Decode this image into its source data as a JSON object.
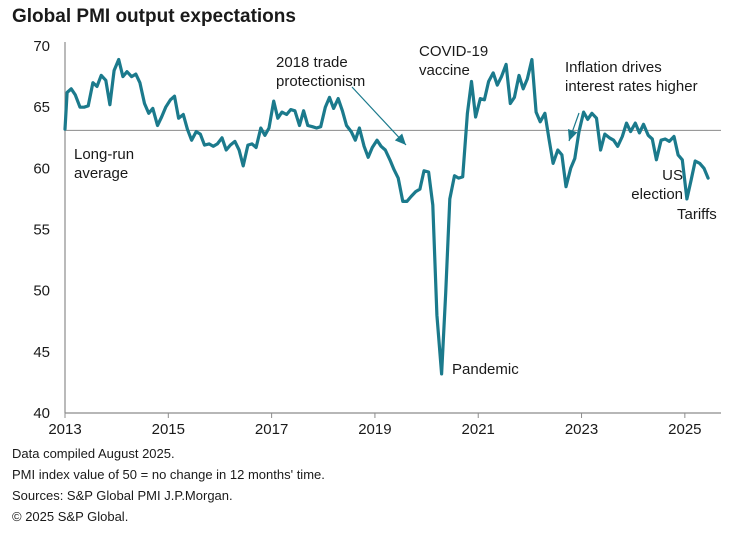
{
  "chart_data": {
    "type": "line",
    "title": "Global PMI output expectations",
    "xlabel": "",
    "ylabel": "",
    "xlim": [
      2013.0,
      2025.7
    ],
    "ylim": [
      40,
      70
    ],
    "x_ticks": [
      "2013",
      "2015",
      "2017",
      "2019",
      "2021",
      "2023",
      "2025"
    ],
    "y_ticks": [
      "40",
      "45",
      "50",
      "55",
      "60",
      "65",
      "70"
    ],
    "reference_line": {
      "label": "Long-run average",
      "value": 63.1
    },
    "line_color": "#1b7a8c",
    "series": [
      {
        "name": "",
        "points": [
          [
            2013.0,
            63.2
          ],
          [
            2013.04,
            66.2
          ],
          [
            2013.12,
            66.5
          ],
          [
            2013.2,
            66.0
          ],
          [
            2013.29,
            65.0
          ],
          [
            2013.37,
            65.0
          ],
          [
            2013.45,
            65.1
          ],
          [
            2013.54,
            67.0
          ],
          [
            2013.62,
            66.7
          ],
          [
            2013.7,
            67.6
          ],
          [
            2013.79,
            67.2
          ],
          [
            2013.87,
            65.2
          ],
          [
            2013.95,
            68.0
          ],
          [
            2014.04,
            68.9
          ],
          [
            2014.12,
            67.5
          ],
          [
            2014.2,
            67.9
          ],
          [
            2014.29,
            67.5
          ],
          [
            2014.37,
            67.7
          ],
          [
            2014.45,
            67.0
          ],
          [
            2014.54,
            65.3
          ],
          [
            2014.62,
            64.5
          ],
          [
            2014.7,
            64.9
          ],
          [
            2014.79,
            63.5
          ],
          [
            2014.87,
            64.2
          ],
          [
            2014.95,
            65.0
          ],
          [
            2015.04,
            65.6
          ],
          [
            2015.12,
            65.9
          ],
          [
            2015.2,
            64.1
          ],
          [
            2015.29,
            64.4
          ],
          [
            2015.37,
            63.2
          ],
          [
            2015.45,
            62.3
          ],
          [
            2015.54,
            63.0
          ],
          [
            2015.62,
            62.8
          ],
          [
            2015.7,
            61.9
          ],
          [
            2015.79,
            62.0
          ],
          [
            2015.87,
            61.8
          ],
          [
            2015.95,
            62.0
          ],
          [
            2016.04,
            62.5
          ],
          [
            2016.12,
            61.5
          ],
          [
            2016.2,
            61.9
          ],
          [
            2016.29,
            62.2
          ],
          [
            2016.37,
            61.5
          ],
          [
            2016.45,
            60.2
          ],
          [
            2016.54,
            61.9
          ],
          [
            2016.62,
            62.0
          ],
          [
            2016.7,
            61.7
          ],
          [
            2016.79,
            63.3
          ],
          [
            2016.87,
            62.7
          ],
          [
            2016.95,
            63.3
          ],
          [
            2017.04,
            65.5
          ],
          [
            2017.12,
            64.1
          ],
          [
            2017.2,
            64.6
          ],
          [
            2017.29,
            64.4
          ],
          [
            2017.37,
            64.8
          ],
          [
            2017.45,
            64.7
          ],
          [
            2017.54,
            63.5
          ],
          [
            2017.62,
            64.7
          ],
          [
            2017.7,
            63.5
          ],
          [
            2017.79,
            63.4
          ],
          [
            2017.87,
            63.3
          ],
          [
            2017.95,
            63.4
          ],
          [
            2018.04,
            65.0
          ],
          [
            2018.12,
            65.8
          ],
          [
            2018.2,
            64.9
          ],
          [
            2018.29,
            65.7
          ],
          [
            2018.37,
            64.7
          ],
          [
            2018.45,
            63.5
          ],
          [
            2018.54,
            63.0
          ],
          [
            2018.62,
            62.3
          ],
          [
            2018.7,
            63.3
          ],
          [
            2018.79,
            61.8
          ],
          [
            2018.87,
            60.9
          ],
          [
            2018.95,
            61.7
          ],
          [
            2019.04,
            62.3
          ],
          [
            2019.12,
            61.8
          ],
          [
            2019.2,
            61.5
          ],
          [
            2019.29,
            60.7
          ],
          [
            2019.37,
            59.9
          ],
          [
            2019.45,
            59.2
          ],
          [
            2019.54,
            57.3
          ],
          [
            2019.62,
            57.3
          ],
          [
            2019.7,
            57.7
          ],
          [
            2019.79,
            58.1
          ],
          [
            2019.87,
            58.3
          ],
          [
            2019.95,
            59.8
          ],
          [
            2020.04,
            59.7
          ],
          [
            2020.12,
            57.0
          ],
          [
            2020.2,
            48.0
          ],
          [
            2020.29,
            43.2
          ],
          [
            2020.37,
            49.8
          ],
          [
            2020.45,
            57.5
          ],
          [
            2020.54,
            59.4
          ],
          [
            2020.62,
            59.2
          ],
          [
            2020.7,
            59.3
          ],
          [
            2020.79,
            64.5
          ],
          [
            2020.87,
            67.1
          ],
          [
            2020.95,
            64.2
          ],
          [
            2021.04,
            65.7
          ],
          [
            2021.12,
            65.6
          ],
          [
            2021.2,
            67.1
          ],
          [
            2021.29,
            67.8
          ],
          [
            2021.37,
            66.8
          ],
          [
            2021.45,
            67.5
          ],
          [
            2021.54,
            68.5
          ],
          [
            2021.62,
            65.3
          ],
          [
            2021.7,
            65.8
          ],
          [
            2021.79,
            67.6
          ],
          [
            2021.87,
            66.5
          ],
          [
            2021.95,
            67.3
          ],
          [
            2022.04,
            68.9
          ],
          [
            2022.12,
            64.6
          ],
          [
            2022.2,
            63.8
          ],
          [
            2022.29,
            64.5
          ],
          [
            2022.37,
            62.4
          ],
          [
            2022.45,
            60.4
          ],
          [
            2022.54,
            61.5
          ],
          [
            2022.62,
            61.1
          ],
          [
            2022.7,
            58.5
          ],
          [
            2022.79,
            60.0
          ],
          [
            2022.87,
            60.8
          ],
          [
            2022.95,
            63.0
          ],
          [
            2023.04,
            64.6
          ],
          [
            2023.12,
            64.0
          ],
          [
            2023.2,
            64.5
          ],
          [
            2023.29,
            64.1
          ],
          [
            2023.37,
            61.5
          ],
          [
            2023.45,
            62.8
          ],
          [
            2023.54,
            62.5
          ],
          [
            2023.62,
            62.3
          ],
          [
            2023.7,
            61.8
          ],
          [
            2023.79,
            62.6
          ],
          [
            2023.87,
            63.7
          ],
          [
            2023.95,
            63.0
          ],
          [
            2024.04,
            63.7
          ],
          [
            2024.12,
            62.9
          ],
          [
            2024.2,
            63.6
          ],
          [
            2024.29,
            62.7
          ],
          [
            2024.37,
            62.4
          ],
          [
            2024.45,
            60.7
          ],
          [
            2024.54,
            62.3
          ],
          [
            2024.62,
            62.4
          ],
          [
            2024.7,
            62.2
          ],
          [
            2024.79,
            62.6
          ],
          [
            2024.87,
            61.1
          ],
          [
            2024.95,
            60.7
          ],
          [
            2025.04,
            57.5
          ],
          [
            2025.12,
            59.0
          ],
          [
            2025.2,
            60.6
          ],
          [
            2025.29,
            60.4
          ],
          [
            2025.37,
            60.0
          ],
          [
            2025.45,
            59.2
          ]
        ]
      }
    ],
    "annotations": [
      {
        "lines": [
          "2018 trade",
          "protectionism"
        ],
        "arrow": true
      },
      {
        "lines": [
          "COVID-19",
          "vaccine"
        ],
        "arrow": false
      },
      {
        "lines": [
          "Inflation drives",
          "interest rates higher"
        ],
        "arrow": true
      },
      {
        "lines": [
          "Long-run",
          "average"
        ],
        "arrow": false
      },
      {
        "lines": [
          "Pandemic"
        ],
        "arrow": false
      },
      {
        "lines": [
          "US",
          "election"
        ],
        "arrow": false
      },
      {
        "lines": [
          "Tariffs"
        ],
        "arrow": false
      }
    ],
    "grid": false,
    "legend": "none"
  },
  "footnotes": [
    "Data compiled August 2025.",
    "PMI index value of 50 = no change in 12 months' time.",
    "Sources: S&P Global PMI J.P.Morgan.",
    "© 2025 S&P Global."
  ]
}
